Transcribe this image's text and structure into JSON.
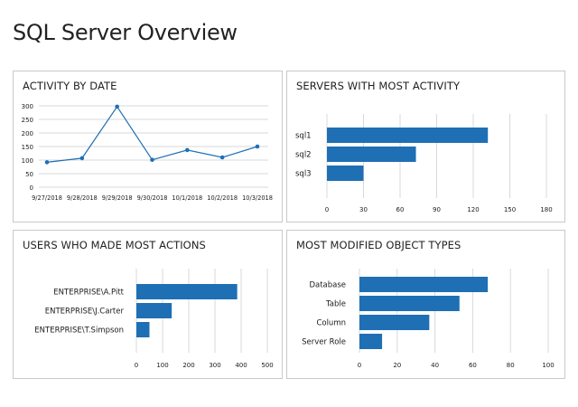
{
  "page": {
    "title": "SQL Server Overview"
  },
  "colors": {
    "bar": "#1f6fb5",
    "line": "#1f6fb5",
    "grid": "#d9d9d9"
  },
  "chart_data": [
    {
      "id": "activity",
      "type": "line",
      "title": "ACTIVITY BY DATE",
      "xlabel": "",
      "ylabel": "",
      "categories": [
        "9/27/2018",
        "9/28/2018",
        "9/29/2018",
        "9/30/2018",
        "10/1/2018",
        "10/2/2018",
        "10/3/2018"
      ],
      "values": [
        92,
        107,
        297,
        101,
        137,
        110,
        150
      ],
      "ylim": [
        0,
        300
      ],
      "yticks": [
        0,
        50,
        100,
        150,
        200,
        250,
        300
      ],
      "grid": true
    },
    {
      "id": "servers",
      "type": "bar",
      "orientation": "horizontal",
      "title": "SERVERS WITH MOST ACTIVITY",
      "categories": [
        "sql1",
        "sql2",
        "sql3"
      ],
      "values": [
        132,
        73,
        30
      ],
      "xlim": [
        0,
        180
      ],
      "xticks": [
        0,
        30,
        60,
        90,
        120,
        150,
        180
      ],
      "grid": true
    },
    {
      "id": "users",
      "type": "bar",
      "orientation": "horizontal",
      "title": "USERS WHO MADE MOST ACTIONS",
      "categories": [
        "ENTERPRISE\\A.Pitt",
        "ENTERPRISE\\J.Carter",
        "ENTERPRISE\\T.Simpson"
      ],
      "values": [
        385,
        135,
        50
      ],
      "xlim": [
        0,
        500
      ],
      "xticks": [
        0,
        100,
        200,
        300,
        400,
        500
      ],
      "grid": true
    },
    {
      "id": "objects",
      "type": "bar",
      "orientation": "horizontal",
      "title": "MOST MODIFIED OBJECT TYPES",
      "categories": [
        "Database",
        "Table",
        "Column",
        "Server Role"
      ],
      "values": [
        68,
        53,
        37,
        12
      ],
      "xlim": [
        0,
        100
      ],
      "xticks": [
        0,
        20,
        40,
        60,
        80,
        100
      ],
      "grid": true
    }
  ]
}
